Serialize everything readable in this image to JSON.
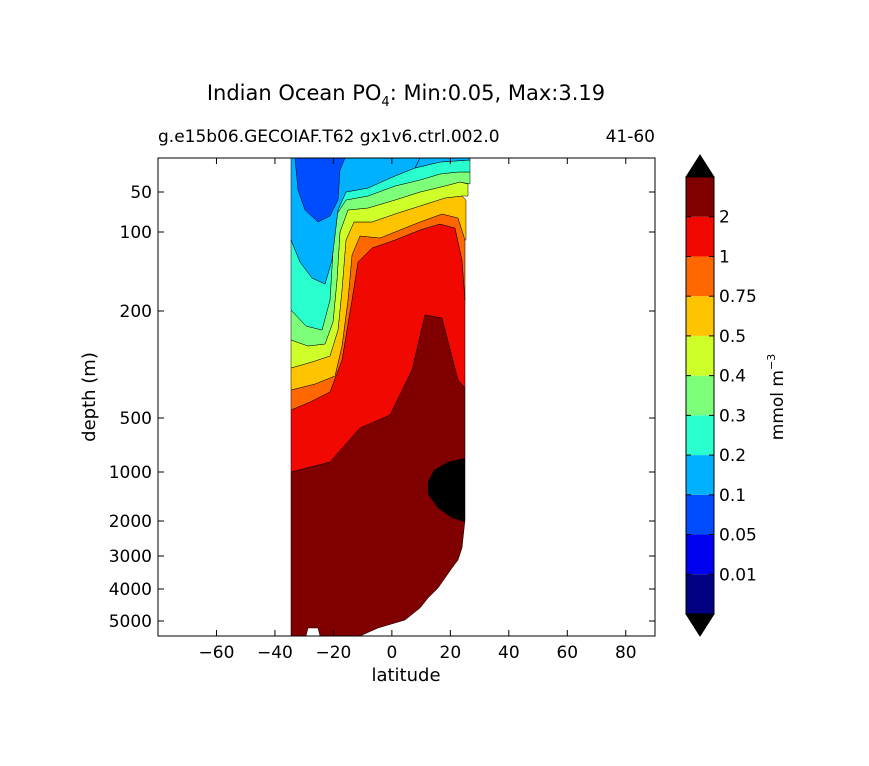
{
  "chart_data": {
    "type": "heatmap",
    "title_prefix": "Indian Ocean PO",
    "title_sub": "4",
    "title_suffix": ": Min:0.05, Max:3.19",
    "subtitle_left": "g.e15b06.GECOIAF.T62 gx1v6.ctrl.002.0",
    "subtitle_right": "41-60",
    "xlabel": "latitude",
    "ylabel": "depth (m)",
    "xlim": [
      -80,
      90
    ],
    "ylim_depth": [
      5500,
      20
    ],
    "x_ticks": [
      "−60",
      "−40",
      "−20",
      "0",
      "20",
      "40",
      "60",
      "80"
    ],
    "y_ticks": [
      "50",
      "100",
      "200",
      "500",
      "1000",
      "2000",
      "3000",
      "4000",
      "5000"
    ],
    "colorbar": {
      "label_main": "mmol m",
      "label_exp": "−3",
      "levels": [
        "0.01",
        "0.05",
        "0.1",
        "0.2",
        "0.3",
        "0.4",
        "0.5",
        "0.75",
        "1",
        "2"
      ],
      "colors": [
        "#000080",
        "#0000f1",
        "#004dff",
        "#00b1ff",
        "#29ffce",
        "#7dff7a",
        "#ceff29",
        "#ffc400",
        "#ff6800",
        "#f10800",
        "#800000"
      ],
      "extend_min_color": "#000000",
      "extend_max_color": "#000000"
    },
    "filled_contours": [
      {
        "level_min": "2",
        "color": "#800000"
      },
      {
        "level_min": "1",
        "color": "#f10800"
      },
      {
        "level_min": "0.75",
        "color": "#ff6800"
      },
      {
        "level_min": "0.5",
        "color": "#ffc400"
      },
      {
        "level_min": "0.4",
        "color": "#ceff29"
      },
      {
        "level_min": "0.3",
        "color": "#7dff7a"
      },
      {
        "level_min": "0.2",
        "color": "#29ffce"
      },
      {
        "level_min": "0.1",
        "color": "#00b1ff"
      },
      {
        "level_min": "0.05",
        "color": "#004dff"
      },
      {
        "level_min": "over_max",
        "color": "#000000"
      }
    ]
  }
}
